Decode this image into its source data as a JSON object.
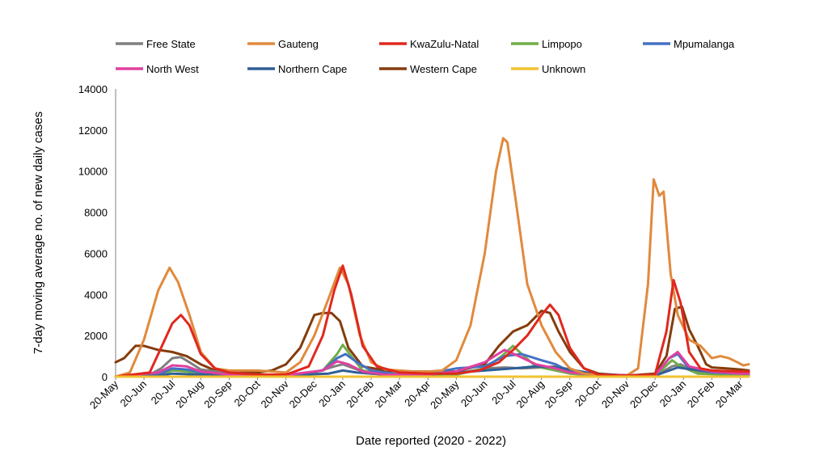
{
  "chart_data": {
    "type": "line",
    "title": "",
    "xlabel": "Date reported (2020 - 2022)",
    "ylabel": "7-day moving average no. of new daily cases",
    "ylim": [
      0,
      14000
    ],
    "yticks": [
      0,
      2000,
      4000,
      6000,
      8000,
      10000,
      12000,
      14000
    ],
    "x_unit": "months since 20-May-2020",
    "xlim": [
      0,
      22.3
    ],
    "xtick_labels": [
      "20-May",
      "20-Jun",
      "20-Jul",
      "20-Aug",
      "20-Sep",
      "20-Oct",
      "20-Nov",
      "20-Dec",
      "20-Jan",
      "20-Feb",
      "20-Mar",
      "20-Apr",
      "20-May",
      "20-Jun",
      "20-Jul",
      "20-Aug",
      "20-Sep",
      "20-Oct",
      "20-Nov",
      "20-Dec",
      "20-Jan",
      "20-Feb",
      "20-Mar"
    ],
    "legend_position": "top",
    "grid": false,
    "series": [
      {
        "name": "Free State",
        "color": "#7f7f7f",
        "points": [
          [
            0,
            0
          ],
          [
            1.2,
            100
          ],
          [
            1.6,
            400
          ],
          [
            2.0,
            900
          ],
          [
            2.3,
            950
          ],
          [
            2.6,
            700
          ],
          [
            3.0,
            350
          ],
          [
            3.5,
            250
          ],
          [
            4,
            200
          ],
          [
            5,
            100
          ],
          [
            6,
            100
          ],
          [
            7,
            200
          ],
          [
            7.7,
            500
          ],
          [
            8.0,
            600
          ],
          [
            8.5,
            350
          ],
          [
            9,
            150
          ],
          [
            10,
            100
          ],
          [
            11,
            100
          ],
          [
            12,
            150
          ],
          [
            13,
            400
          ],
          [
            13.7,
            450
          ],
          [
            14.3,
            400
          ],
          [
            15,
            450
          ],
          [
            15.5,
            500
          ],
          [
            16,
            350
          ],
          [
            16.5,
            150
          ],
          [
            17,
            80
          ],
          [
            18,
            50
          ],
          [
            19,
            50
          ],
          [
            19.6,
            500
          ],
          [
            19.9,
            600
          ],
          [
            20.3,
            300
          ],
          [
            21,
            150
          ],
          [
            22,
            100
          ],
          [
            22.3,
            100
          ]
        ]
      },
      {
        "name": "Gauteng",
        "color": "#e08a3c",
        "points": [
          [
            0,
            0
          ],
          [
            0.5,
            200
          ],
          [
            1.0,
            1800
          ],
          [
            1.5,
            4200
          ],
          [
            1.9,
            5300
          ],
          [
            2.2,
            4600
          ],
          [
            2.6,
            3000
          ],
          [
            3.0,
            1200
          ],
          [
            3.5,
            400
          ],
          [
            4,
            300
          ],
          [
            4.5,
            300
          ],
          [
            5,
            300
          ],
          [
            5.5,
            250
          ],
          [
            6,
            200
          ],
          [
            6.5,
            700
          ],
          [
            7,
            2000
          ],
          [
            7.5,
            3800
          ],
          [
            7.9,
            5300
          ],
          [
            8.2,
            4500
          ],
          [
            8.6,
            2000
          ],
          [
            9.0,
            700
          ],
          [
            9.5,
            350
          ],
          [
            10,
            300
          ],
          [
            10.5,
            250
          ],
          [
            11,
            250
          ],
          [
            11.5,
            300
          ],
          [
            12,
            800
          ],
          [
            12.5,
            2500
          ],
          [
            13.0,
            6000
          ],
          [
            13.4,
            10000
          ],
          [
            13.65,
            11600
          ],
          [
            13.8,
            11400
          ],
          [
            14.1,
            8500
          ],
          [
            14.5,
            4500
          ],
          [
            15,
            2500
          ],
          [
            15.5,
            1200
          ],
          [
            16,
            400
          ],
          [
            16.5,
            150
          ],
          [
            17,
            80
          ],
          [
            18,
            50
          ],
          [
            18.4,
            400
          ],
          [
            18.75,
            4500
          ],
          [
            18.95,
            9600
          ],
          [
            19.15,
            8800
          ],
          [
            19.3,
            9000
          ],
          [
            19.55,
            5000
          ],
          [
            19.8,
            3000
          ],
          [
            20.2,
            1800
          ],
          [
            20.6,
            1500
          ],
          [
            21.0,
            900
          ],
          [
            21.3,
            1000
          ],
          [
            21.6,
            900
          ],
          [
            21.9,
            700
          ],
          [
            22.1,
            550
          ],
          [
            22.3,
            600
          ]
        ]
      },
      {
        "name": "KwaZulu-Natal",
        "color": "#e0281e",
        "points": [
          [
            0,
            0
          ],
          [
            1.2,
            200
          ],
          [
            1.6,
            1400
          ],
          [
            2.0,
            2600
          ],
          [
            2.3,
            3000
          ],
          [
            2.6,
            2500
          ],
          [
            3.0,
            1100
          ],
          [
            3.5,
            400
          ],
          [
            4,
            200
          ],
          [
            5,
            100
          ],
          [
            6,
            100
          ],
          [
            6.8,
            500
          ],
          [
            7.3,
            2000
          ],
          [
            7.7,
            4200
          ],
          [
            8.0,
            5400
          ],
          [
            8.3,
            4000
          ],
          [
            8.7,
            1500
          ],
          [
            9.2,
            500
          ],
          [
            10,
            200
          ],
          [
            11,
            150
          ],
          [
            12,
            150
          ],
          [
            12.8,
            300
          ],
          [
            13.5,
            700
          ],
          [
            14.0,
            1300
          ],
          [
            14.5,
            2000
          ],
          [
            15.0,
            3000
          ],
          [
            15.3,
            3500
          ],
          [
            15.6,
            3000
          ],
          [
            16.0,
            1400
          ],
          [
            16.5,
            400
          ],
          [
            17,
            100
          ],
          [
            18,
            50
          ],
          [
            19,
            100
          ],
          [
            19.4,
            2200
          ],
          [
            19.65,
            4700
          ],
          [
            19.9,
            3600
          ],
          [
            20.2,
            1200
          ],
          [
            20.6,
            400
          ],
          [
            21,
            300
          ],
          [
            22,
            250
          ],
          [
            22.3,
            250
          ]
        ]
      },
      {
        "name": "Limpopo",
        "color": "#70ad47",
        "points": [
          [
            0,
            0
          ],
          [
            1.5,
            100
          ],
          [
            2.0,
            300
          ],
          [
            2.5,
            250
          ],
          [
            3.0,
            150
          ],
          [
            4,
            50
          ],
          [
            6,
            50
          ],
          [
            7.3,
            300
          ],
          [
            7.8,
            1100
          ],
          [
            8.0,
            1550
          ],
          [
            8.3,
            1000
          ],
          [
            8.7,
            300
          ],
          [
            9.5,
            100
          ],
          [
            11,
            50
          ],
          [
            12,
            100
          ],
          [
            13,
            400
          ],
          [
            13.6,
            1000
          ],
          [
            14.0,
            1500
          ],
          [
            14.3,
            1100
          ],
          [
            14.8,
            500
          ],
          [
            15.5,
            300
          ],
          [
            16,
            150
          ],
          [
            17,
            50
          ],
          [
            19,
            50
          ],
          [
            19.6,
            800
          ],
          [
            19.9,
            500
          ],
          [
            20.5,
            150
          ],
          [
            22,
            80
          ],
          [
            22.3,
            80
          ]
        ]
      },
      {
        "name": "Mpumalanga",
        "color": "#4472c4",
        "points": [
          [
            0,
            0
          ],
          [
            1.5,
            100
          ],
          [
            2.0,
            400
          ],
          [
            2.5,
            350
          ],
          [
            3.0,
            200
          ],
          [
            4,
            100
          ],
          [
            6,
            80
          ],
          [
            7.3,
            300
          ],
          [
            7.8,
            900
          ],
          [
            8.1,
            1100
          ],
          [
            8.5,
            700
          ],
          [
            9,
            300
          ],
          [
            10,
            100
          ],
          [
            11,
            150
          ],
          [
            12,
            400
          ],
          [
            13,
            500
          ],
          [
            13.7,
            1000
          ],
          [
            14.3,
            1100
          ],
          [
            15.0,
            800
          ],
          [
            15.5,
            600
          ],
          [
            16,
            250
          ],
          [
            17,
            80
          ],
          [
            19,
            50
          ],
          [
            19.5,
            900
          ],
          [
            19.8,
            1100
          ],
          [
            20.2,
            400
          ],
          [
            21,
            200
          ],
          [
            22,
            150
          ],
          [
            22.3,
            150
          ]
        ]
      },
      {
        "name": "North West",
        "color": "#e040a0",
        "points": [
          [
            0,
            0
          ],
          [
            1.5,
            200
          ],
          [
            2.0,
            550
          ],
          [
            2.5,
            500
          ],
          [
            3.0,
            250
          ],
          [
            4,
            100
          ],
          [
            6,
            80
          ],
          [
            7.3,
            300
          ],
          [
            7.8,
            750
          ],
          [
            8.2,
            600
          ],
          [
            8.7,
            250
          ],
          [
            9.5,
            100
          ],
          [
            11,
            100
          ],
          [
            12,
            250
          ],
          [
            13,
            700
          ],
          [
            13.7,
            1300
          ],
          [
            14.2,
            1000
          ],
          [
            14.8,
            600
          ],
          [
            15.5,
            400
          ],
          [
            16,
            200
          ],
          [
            17,
            80
          ],
          [
            19,
            60
          ],
          [
            19.5,
            900
          ],
          [
            19.8,
            1200
          ],
          [
            20.2,
            500
          ],
          [
            21,
            250
          ],
          [
            22,
            150
          ],
          [
            22.3,
            150
          ]
        ]
      },
      {
        "name": "Northern Cape",
        "color": "#2f5f97",
        "points": [
          [
            0,
            0
          ],
          [
            1.5,
            50
          ],
          [
            2.0,
            150
          ],
          [
            3.0,
            100
          ],
          [
            4,
            100
          ],
          [
            6,
            80
          ],
          [
            7.5,
            150
          ],
          [
            8.0,
            300
          ],
          [
            8.5,
            200
          ],
          [
            9.5,
            100
          ],
          [
            11,
            100
          ],
          [
            12,
            200
          ],
          [
            13,
            300
          ],
          [
            14,
            400
          ],
          [
            14.8,
            500
          ],
          [
            15.5,
            450
          ],
          [
            16.2,
            300
          ],
          [
            17,
            100
          ],
          [
            19,
            50
          ],
          [
            19.5,
            300
          ],
          [
            19.8,
            450
          ],
          [
            20.3,
            350
          ],
          [
            21,
            250
          ],
          [
            22,
            200
          ],
          [
            22.3,
            200
          ]
        ]
      },
      {
        "name": "Western Cape",
        "color": "#843c0c",
        "points": [
          [
            0,
            700
          ],
          [
            0.3,
            900
          ],
          [
            0.7,
            1500
          ],
          [
            1.0,
            1500
          ],
          [
            1.5,
            1300
          ],
          [
            2.0,
            1200
          ],
          [
            2.5,
            1000
          ],
          [
            3.0,
            600
          ],
          [
            3.5,
            300
          ],
          [
            4,
            200
          ],
          [
            5,
            200
          ],
          [
            5.5,
            300
          ],
          [
            6,
            600
          ],
          [
            6.5,
            1400
          ],
          [
            7.0,
            3000
          ],
          [
            7.3,
            3100
          ],
          [
            7.6,
            3100
          ],
          [
            7.9,
            2700
          ],
          [
            8.2,
            1400
          ],
          [
            8.7,
            500
          ],
          [
            9.5,
            300
          ],
          [
            10,
            250
          ],
          [
            11,
            250
          ],
          [
            12,
            250
          ],
          [
            13,
            600
          ],
          [
            13.5,
            1500
          ],
          [
            14.0,
            2200
          ],
          [
            14.5,
            2500
          ],
          [
            15.0,
            3200
          ],
          [
            15.3,
            3100
          ],
          [
            15.6,
            2200
          ],
          [
            16.0,
            1200
          ],
          [
            16.5,
            400
          ],
          [
            17,
            150
          ],
          [
            18,
            50
          ],
          [
            19,
            150
          ],
          [
            19.4,
            1000
          ],
          [
            19.7,
            3300
          ],
          [
            19.95,
            3400
          ],
          [
            20.2,
            2300
          ],
          [
            20.5,
            1500
          ],
          [
            20.8,
            600
          ],
          [
            21,
            450
          ],
          [
            21.5,
            400
          ],
          [
            22,
            350
          ],
          [
            22.3,
            300
          ]
        ]
      },
      {
        "name": "Unknown",
        "color": "#f2c231",
        "points": [
          [
            0,
            0
          ],
          [
            22.3,
            0
          ]
        ]
      }
    ]
  }
}
